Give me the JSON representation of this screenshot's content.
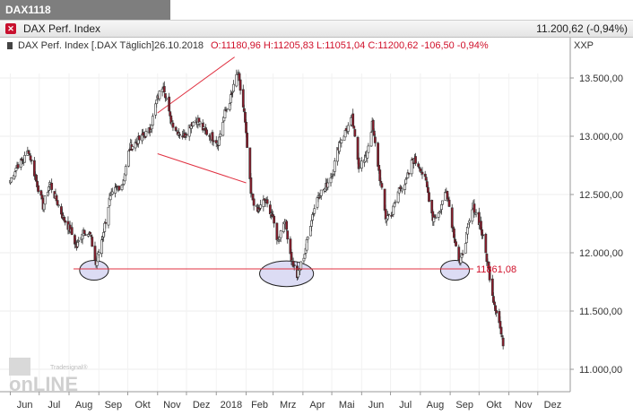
{
  "tab_title": "DAX1118",
  "header": {
    "instrument": "DAX Perf. Index",
    "price_text": "11.200,62 (-0,94%)"
  },
  "legend": {
    "instrument": "DAX Perf. Index [.DAX  Täglich]",
    "date": "26.10.2018",
    "ohlc": "O:11180,96 H:11205,83 L:11051,04 C:11200,62 -106,50 -0,94%"
  },
  "axis_unit": "XXP",
  "watermark": {
    "brand_small": "Tradesignal®",
    "brand_big": "onLINE"
  },
  "colors": {
    "up": "#ffffff",
    "down": "#8b1a2a",
    "wick": "#333333",
    "annotation": "#e03040",
    "ellipse_fill": "#dcdcf4"
  },
  "chart_data": {
    "type": "candlestick",
    "frequency": "daily",
    "ylim": [
      10850,
      13750
    ],
    "yticks": [
      11000,
      11500,
      12000,
      12500,
      13000,
      13500
    ],
    "ytick_labels": [
      "11.000,00",
      "11.500,00",
      "12.000,00",
      "12.500,00",
      "13.000,00",
      "13.500,00"
    ],
    "month_labels": [
      "Jun",
      "Jul",
      "Aug",
      "Sep",
      "Okt",
      "Nov",
      "Dez",
      "2018",
      "Feb",
      "Mrz",
      "Apr",
      "Mai",
      "Jun",
      "Jul",
      "Aug",
      "Sep",
      "Okt",
      "Nov",
      "Dez"
    ],
    "support_level": 11861.08,
    "support_label": "11861,08",
    "close_path": [
      [
        "2017-06-01",
        12620
      ],
      [
        "2017-06-08",
        12750
      ],
      [
        "2017-06-15",
        12800
      ],
      [
        "2017-06-20",
        12880
      ],
      [
        "2017-06-27",
        12650
      ],
      [
        "2017-07-05",
        12400
      ],
      [
        "2017-07-12",
        12600
      ],
      [
        "2017-07-19",
        12450
      ],
      [
        "2017-07-26",
        12300
      ],
      [
        "2017-08-02",
        12200
      ],
      [
        "2017-08-09",
        12050
      ],
      [
        "2017-08-16",
        12200
      ],
      [
        "2017-08-23",
        12150
      ],
      [
        "2017-08-29",
        11900
      ],
      [
        "2017-09-05",
        12150
      ],
      [
        "2017-09-12",
        12450
      ],
      [
        "2017-09-19",
        12550
      ],
      [
        "2017-09-26",
        12600
      ],
      [
        "2017-10-03",
        12900
      ],
      [
        "2017-10-10",
        12950
      ],
      [
        "2017-10-17",
        13000
      ],
      [
        "2017-10-24",
        13050
      ],
      [
        "2017-10-31",
        13300
      ],
      [
        "2017-11-07",
        13450
      ],
      [
        "2017-11-14",
        13150
      ],
      [
        "2017-11-21",
        13050
      ],
      [
        "2017-11-28",
        13000
      ],
      [
        "2017-12-05",
        13100
      ],
      [
        "2017-12-12",
        13150
      ],
      [
        "2017-12-19",
        13050
      ],
      [
        "2018-01-03",
        12950
      ],
      [
        "2018-01-10",
        13200
      ],
      [
        "2018-01-17",
        13350
      ],
      [
        "2018-01-23",
        13550
      ],
      [
        "2018-01-30",
        13200
      ],
      [
        "2018-02-06",
        12500
      ],
      [
        "2018-02-13",
        12350
      ],
      [
        "2018-02-20",
        12450
      ],
      [
        "2018-02-27",
        12350
      ],
      [
        "2018-03-06",
        12100
      ],
      [
        "2018-03-13",
        12300
      ],
      [
        "2018-03-20",
        11950
      ],
      [
        "2018-03-26",
        11800
      ],
      [
        "2018-04-03",
        12000
      ],
      [
        "2018-04-10",
        12300
      ],
      [
        "2018-04-17",
        12500
      ],
      [
        "2018-04-24",
        12550
      ],
      [
        "2018-05-02",
        12700
      ],
      [
        "2018-05-09",
        12950
      ],
      [
        "2018-05-16",
        13050
      ],
      [
        "2018-05-22",
        13150
      ],
      [
        "2018-05-29",
        12750
      ],
      [
        "2018-06-05",
        12800
      ],
      [
        "2018-06-12",
        13100
      ],
      [
        "2018-06-19",
        12700
      ],
      [
        "2018-06-26",
        12300
      ],
      [
        "2018-07-03",
        12350
      ],
      [
        "2018-07-10",
        12550
      ],
      [
        "2018-07-17",
        12600
      ],
      [
        "2018-07-24",
        12800
      ],
      [
        "2018-07-31",
        12750
      ],
      [
        "2018-08-07",
        12600
      ],
      [
        "2018-08-14",
        12300
      ],
      [
        "2018-08-21",
        12350
      ],
      [
        "2018-08-28",
        12550
      ],
      [
        "2018-09-04",
        12200
      ],
      [
        "2018-09-11",
        11900
      ],
      [
        "2018-09-18",
        12150
      ],
      [
        "2018-09-25",
        12400
      ],
      [
        "2018-10-02",
        12250
      ],
      [
        "2018-10-09",
        11950
      ],
      [
        "2018-10-16",
        11600
      ],
      [
        "2018-10-22",
        11400
      ],
      [
        "2018-10-26",
        11200.62
      ]
    ],
    "annotations": {
      "triangle_upper": [
        [
          "2017-11-01",
          13200
        ],
        [
          "2018-01-20",
          13680
        ]
      ],
      "triangle_lower": [
        [
          "2017-11-01",
          12850
        ],
        [
          "2018-02-01",
          12600
        ]
      ],
      "ellipses": [
        {
          "center": [
            "2017-08-27",
            11850
          ],
          "half_width_days": 15,
          "half_height": 85
        },
        {
          "center": [
            "2018-03-15",
            11820
          ],
          "half_width_days": 28,
          "half_height": 110
        },
        {
          "center": [
            "2018-09-06",
            11850
          ],
          "half_width_days": 15,
          "half_height": 85
        }
      ]
    }
  }
}
